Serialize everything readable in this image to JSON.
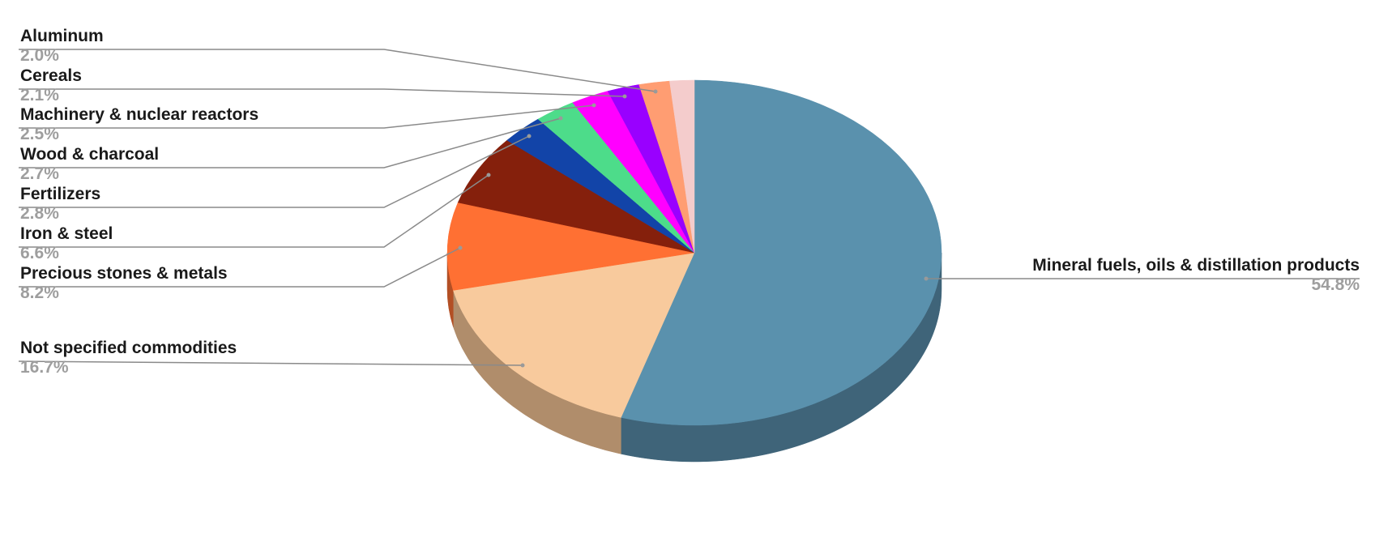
{
  "chart_data": {
    "type": "pie",
    "style": "3d",
    "title": "",
    "start": "top, clockwise",
    "slices": [
      {
        "label": "Mineral fuels, oils & distillation products",
        "value": 54.8,
        "percent_label": "54.8%",
        "color": "#5a91ad",
        "side_color": "#3f6479"
      },
      {
        "label": "Not specified commodities",
        "value": 16.7,
        "percent_label": "16.7%",
        "color": "#f8ca9d",
        "side_color": "#b08d6b"
      },
      {
        "label": "Precious stones & metals",
        "value": 8.2,
        "percent_label": "8.2%",
        "color": "#ff7033",
        "side_color": "#b34f24"
      },
      {
        "label": "Iron & steel",
        "value": 6.6,
        "percent_label": "6.6%",
        "color": "#85200c",
        "side_color": "#5d1608"
      },
      {
        "label": "Fertilizers",
        "value": 2.8,
        "percent_label": "2.8%",
        "color": "#1244a8",
        "side_color": "#0d3076"
      },
      {
        "label": "Wood & charcoal",
        "value": 2.7,
        "percent_label": "2.7%",
        "color": "#4ddc8a",
        "side_color": "#369a61"
      },
      {
        "label": "Machinery & nuclear reactors",
        "value": 2.5,
        "percent_label": "2.5%",
        "color": "#ff00ff",
        "side_color": "#b300b3"
      },
      {
        "label": "Cereals",
        "value": 2.1,
        "percent_label": "2.1%",
        "color": "#9900ff",
        "side_color": "#6b00b3"
      },
      {
        "label": "Aluminum",
        "value": 2.0,
        "percent_label": "2.0%",
        "color": "#ff9d72",
        "side_color": "#b36e50"
      },
      {
        "label": "",
        "value": 1.6,
        "percent_label": "",
        "color": "#f4cccc",
        "side_color": "#ab8f8f"
      }
    ],
    "legend": "leader-line labels"
  }
}
